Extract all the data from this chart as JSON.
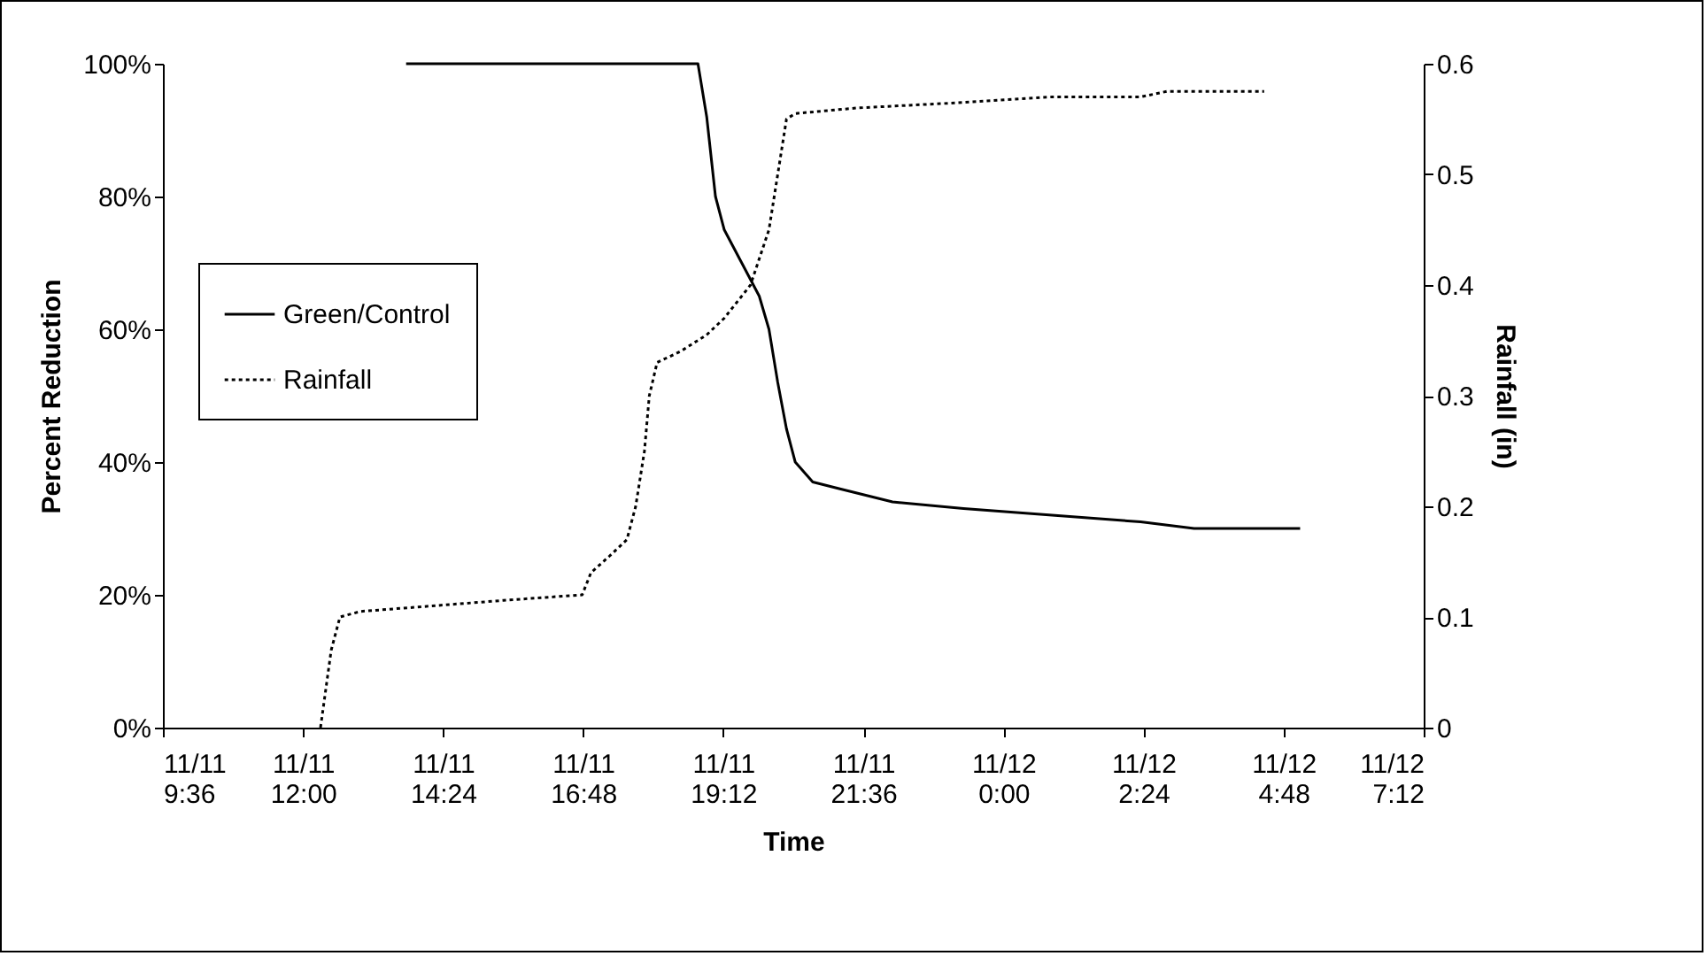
{
  "chart_data": {
    "type": "line",
    "xlabel": "Time",
    "ylabel": "Percent Reduction",
    "y2label": "Rainfall (in)",
    "xlim": [
      "--11-11T09:36",
      "--11-12T07:12"
    ],
    "xticks": [
      {
        "value": "--11-11T09:36",
        "label": "11/11\n9:36"
      },
      {
        "value": "--11-11T12:00",
        "label": "11/11\n12:00"
      },
      {
        "value": "--11-11T14:24",
        "label": "11/11\n14:24"
      },
      {
        "value": "--11-11T16:48",
        "label": "11/11\n16:48"
      },
      {
        "value": "--11-11T19:12",
        "label": "11/11\n19:12"
      },
      {
        "value": "--11-11T21:36",
        "label": "11/11\n21:36"
      },
      {
        "value": "--11-12T00:00",
        "label": "11/12\n0:00"
      },
      {
        "value": "--11-12T02:24",
        "label": "11/12\n2:24"
      },
      {
        "value": "--11-12T04:48",
        "label": "11/12\n4:48"
      },
      {
        "value": "--11-12T07:12",
        "label": "11/12\n7:12"
      }
    ],
    "ylim": [
      0,
      100
    ],
    "yticks": [
      {
        "value": 0,
        "label": "0%"
      },
      {
        "value": 20,
        "label": "20%"
      },
      {
        "value": 40,
        "label": "40%"
      },
      {
        "value": 60,
        "label": "60%"
      },
      {
        "value": 80,
        "label": "80%"
      },
      {
        "value": 100,
        "label": "100%"
      }
    ],
    "y2lim": [
      0,
      0.6
    ],
    "y2ticks": [
      0,
      0.1,
      0.2,
      0.3,
      0.4,
      0.5,
      0.6
    ],
    "legend": "left",
    "grid": false,
    "marker": "none",
    "series": [
      {
        "name": "Green/Control",
        "color": "#000000",
        "line_style": "solid",
        "x": [
          "--11-11T13:46",
          "--11-11T18:46",
          "--11-11T18:55",
          "--11-11T19:04",
          "--11-11T19:13",
          "--11-11T19:31",
          "--11-11T19:49",
          "--11-11T19:59",
          "--11-11T20:08",
          "--11-11T20:17",
          "--11-11T20:26",
          "--11-11T20:44",
          "--11-11T21:11",
          "--11-11T22:06",
          "--11-11T23:19",
          "--11-12T00:50",
          "--11-12T02:21",
          "--11-12T03:16",
          "--11-12T05:05"
        ],
        "values": [
          100,
          100,
          92,
          80,
          75,
          70,
          65,
          60,
          52,
          45,
          40,
          37,
          36,
          34,
          33,
          32,
          31,
          30,
          30
        ]
      },
      {
        "name": "Rainfall",
        "color": "#000000",
        "line_style": "dotted",
        "axis": "y2",
        "x": [
          "--11-11T12:18",
          "--11-11T12:29",
          "--11-11T12:38",
          "--11-11T12:59",
          "--11-11T14:13",
          "--11-11T15:26",
          "--11-11T16:47",
          "--11-11T16:56",
          "--11-11T17:15",
          "--11-11T17:33",
          "--11-11T17:42",
          "--11-11T17:51",
          "--11-11T17:56",
          "--11-11T18:04",
          "--11-11T18:28",
          "--11-11T18:55",
          "--11-11T19:13",
          "--11-11T19:40",
          "--11-11T19:59",
          "--11-11T20:08",
          "--11-11T20:17",
          "--11-11T20:26",
          "--11-11T21:29",
          "--11-11T23:19",
          "--11-12T00:50",
          "--11-12T02:21",
          "--11-12T02:48",
          "--11-12T04:28"
        ],
        "values": [
          0,
          0.07,
          0.1,
          0.105,
          0.11,
          0.115,
          0.12,
          0.14,
          0.155,
          0.17,
          0.2,
          0.25,
          0.3,
          0.33,
          0.34,
          0.355,
          0.37,
          0.4,
          0.45,
          0.5,
          0.55,
          0.555,
          0.56,
          0.565,
          0.57,
          0.57,
          0.575,
          0.575
        ]
      }
    ]
  }
}
